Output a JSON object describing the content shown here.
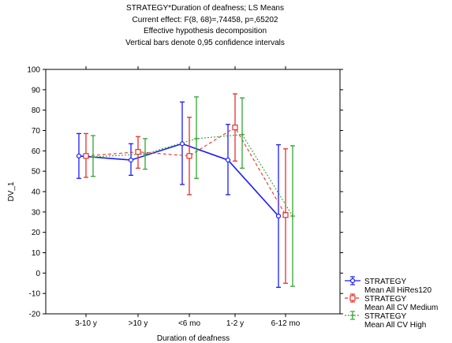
{
  "chart_data": {
    "type": "line",
    "title": "STRATEGY*Duration of deafness; LS Means",
    "subtitle_lines": [
      "Current effect: F(8, 68)=,74458, p=,65202",
      "Effective hypothesis decomposition",
      "Vertical bars denote 0,95 confidence intervals"
    ],
    "xlabel": "Duration of deafness",
    "ylabel": "DV_1",
    "categories": [
      "3-10 y",
      ">10 y",
      "<6 mo",
      "1-2 y",
      "6-12 mo"
    ],
    "ylim": [
      -20,
      100
    ],
    "yticks": [
      -20,
      -10,
      0,
      10,
      20,
      30,
      40,
      50,
      60,
      70,
      80,
      90,
      100
    ],
    "grid": false,
    "legend_position": "bottom-right",
    "series": [
      {
        "legend_title": "STRATEGY",
        "name": "Mean All HiRes120",
        "color": "#1a1aff",
        "marker": "circle",
        "line_style": "solid",
        "values": [
          57.5,
          55.5,
          63.5,
          55.5,
          28.0
        ],
        "ci_low": [
          46.5,
          48.0,
          43.5,
          38.5,
          -7.0
        ],
        "ci_high": [
          68.5,
          63.5,
          84.0,
          73.0,
          63.0
        ]
      },
      {
        "legend_title": "STRATEGY",
        "name": "Mean All CV Medium",
        "color": "#e8302a",
        "marker": "square",
        "line_style": "dashed",
        "values": [
          57.5,
          59.5,
          57.5,
          71.5,
          28.5
        ],
        "ci_low": [
          47.0,
          51.5,
          38.5,
          55.0,
          -5.0
        ],
        "ci_high": [
          68.5,
          67.0,
          76.5,
          88.0,
          61.0
        ]
      },
      {
        "legend_title": "STRATEGY",
        "name": "Mean All CV High",
        "color": "#33a333",
        "marker": "plus",
        "line_style": "dotted",
        "values": [
          57.0,
          58.5,
          66.0,
          68.0,
          28.0
        ],
        "ci_low": [
          47.5,
          51.0,
          46.5,
          51.5,
          -6.5
        ],
        "ci_high": [
          67.5,
          66.0,
          86.5,
          86.0,
          62.5
        ]
      }
    ]
  }
}
